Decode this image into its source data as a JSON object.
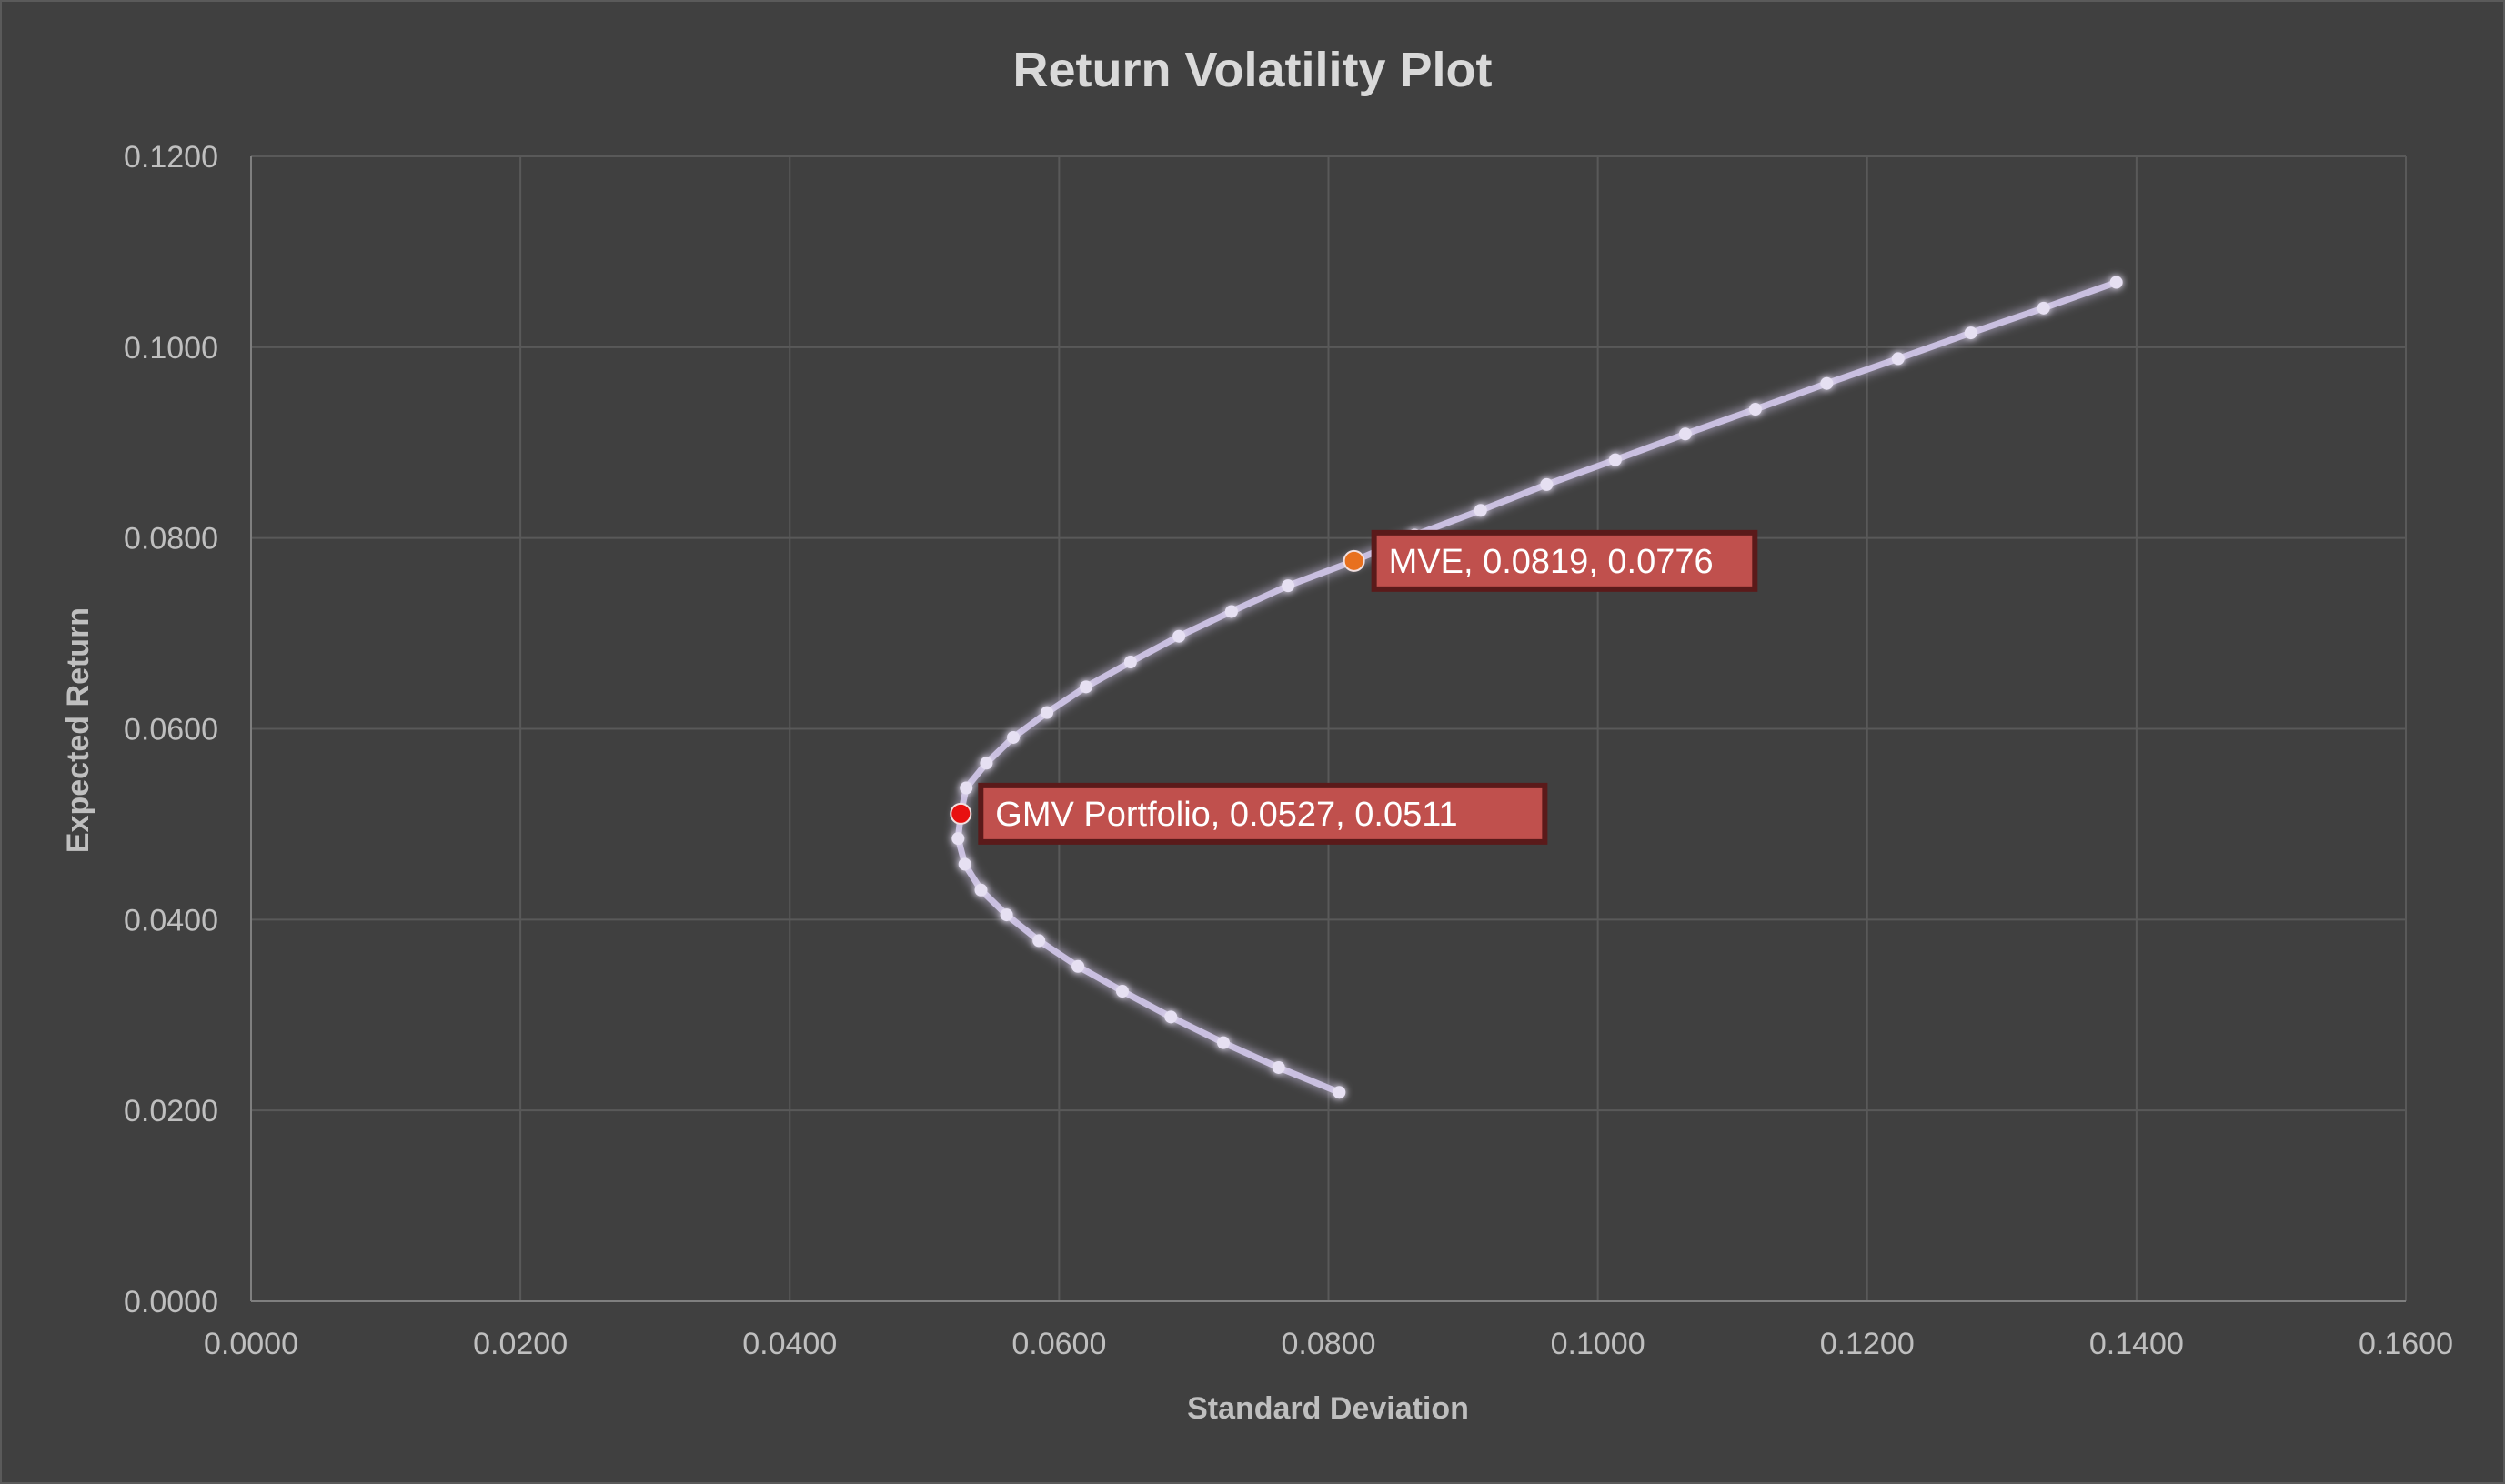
{
  "chart_data": {
    "type": "scatter",
    "title": "Return Volatility Plot",
    "xlabel": "Standard Deviation",
    "ylabel": "Expected Return",
    "xlim": [
      0,
      0.16
    ],
    "ylim": [
      0,
      0.12
    ],
    "x_ticks": [
      "0.0000",
      "0.0200",
      "0.0400",
      "0.0600",
      "0.0800",
      "0.1000",
      "0.1200",
      "0.1400",
      "0.1600"
    ],
    "y_ticks": [
      "0.0000",
      "0.0200",
      "0.0400",
      "0.0600",
      "0.0800",
      "0.1000",
      "0.1200"
    ],
    "x_tick_values": [
      0,
      0.02,
      0.04,
      0.06,
      0.08,
      0.1,
      0.12,
      0.14,
      0.16
    ],
    "y_tick_values": [
      0,
      0.02,
      0.04,
      0.06,
      0.08,
      0.1,
      0.12
    ],
    "grid": true,
    "legend": "none",
    "series": [
      {
        "color": "#c9bfe0",
        "points": [
          [
            0.0808,
            0.0219
          ],
          [
            0.0763,
            0.0245
          ],
          [
            0.0722,
            0.0271
          ],
          [
            0.0683,
            0.0298
          ],
          [
            0.0647,
            0.0325
          ],
          [
            0.0614,
            0.0351
          ],
          [
            0.0585,
            0.0378
          ],
          [
            0.0561,
            0.0405
          ],
          [
            0.0542,
            0.0431
          ],
          [
            0.053,
            0.0458
          ],
          [
            0.0525,
            0.0485
          ],
          [
            0.0527,
            0.0511
          ],
          [
            0.0531,
            0.0538
          ],
          [
            0.0546,
            0.0564
          ],
          [
            0.0566,
            0.0591
          ],
          [
            0.0591,
            0.0617
          ],
          [
            0.062,
            0.0644
          ],
          [
            0.0653,
            0.067
          ],
          [
            0.0689,
            0.0697
          ],
          [
            0.0728,
            0.0723
          ],
          [
            0.077,
            0.075
          ],
          [
            0.0819,
            0.0776
          ],
          [
            0.0864,
            0.0803
          ],
          [
            0.0913,
            0.0829
          ],
          [
            0.0962,
            0.0856
          ],
          [
            0.1013,
            0.0882
          ],
          [
            0.1065,
            0.0909
          ],
          [
            0.1117,
            0.0935
          ],
          [
            0.117,
            0.0962
          ],
          [
            0.1223,
            0.0988
          ],
          [
            0.1277,
            0.1015
          ],
          [
            0.1331,
            0.1041
          ],
          [
            0.1385,
            0.1068
          ]
        ]
      }
    ],
    "annotations": [
      {
        "label": "MVE, 0.0819, 0.0776",
        "x": 0.0819,
        "y": 0.0776,
        "marker_color": "#e8701e"
      },
      {
        "label": "GMV Portfolio, 0.0527, 0.0511",
        "x": 0.0527,
        "y": 0.0511,
        "marker_color": "#e81010"
      }
    ]
  }
}
